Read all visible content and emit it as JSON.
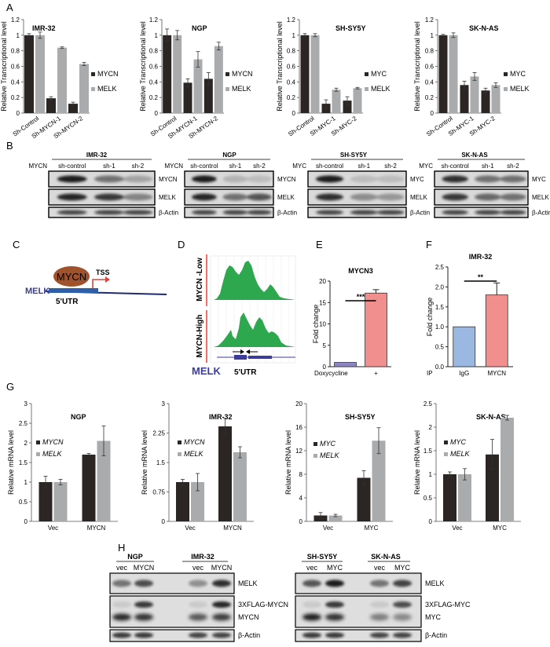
{
  "figure": {
    "panel_labels": {
      "A": "A",
      "B": "B",
      "C": "C",
      "D": "D",
      "E": "E",
      "F": "F",
      "G": "G",
      "H": "H"
    },
    "colors": {
      "dark": "#2b2523",
      "light": "#a9abad",
      "green": "#2ea84f",
      "blue": "#9bb8e3",
      "pink": "#f18e8e",
      "purple": "#8c86c4",
      "red_line": "#e0433b",
      "melk_blue": "#3d3c99",
      "brown": "#a0522d"
    },
    "C": {
      "tf": "MYCN",
      "tss": "TSS",
      "gene": "MELK",
      "utr": "5'UTR"
    },
    "D": {
      "low": "MYCN -Low",
      "high": "MYCN-High",
      "gene": "MELK",
      "utr": "5'UTR"
    },
    "B": {
      "blots": [
        {
          "cell": "IMR-32",
          "target": "MYCN",
          "lanes": [
            "sh-control",
            "sh-1",
            "sh-2"
          ],
          "rows": [
            "MYCN",
            "MELK",
            "β-Actin"
          ]
        },
        {
          "cell": "NGP",
          "target": "MYCN",
          "lanes": [
            "sh-control",
            "sh-1",
            "sh-2"
          ],
          "rows": [
            "MYCN",
            "MELK",
            "β-Actin"
          ]
        },
        {
          "cell": "SH-SY5Y",
          "target": "MYC",
          "lanes": [
            "sh-control",
            "sh-1",
            "sh-2"
          ],
          "rows": [
            "MYC",
            "MELK",
            "β-Actin"
          ]
        },
        {
          "cell": "SK-N-AS",
          "target": "MYC",
          "lanes": [
            "sh-control",
            "sh-1",
            "sh-2"
          ],
          "rows": [
            "MYC",
            "MELK",
            "β-Actin"
          ]
        }
      ]
    },
    "H": {
      "blots": [
        {
          "cells": [
            "NGP",
            "IMR-32"
          ],
          "lanes": [
            "vec",
            "MYCN",
            "vec",
            "MYCN"
          ],
          "rows": [
            "MELK",
            "3XFLAG-MYCN",
            "MYCN",
            "β-Actin"
          ]
        },
        {
          "cells": [
            "SH-SY5Y",
            "SK-N-AS"
          ],
          "lanes": [
            "vec",
            "MYC",
            "vec",
            "MYC"
          ],
          "rows": [
            "MELK",
            "3XFLAG-MYC",
            "MYC",
            "β-Actin"
          ]
        }
      ]
    }
  },
  "chart_data": [
    {
      "panel": "A",
      "type": "bar",
      "title": "IMR-32",
      "ylabel": "Relative Transcriptional level",
      "categories": [
        "Sh-Control",
        "Sh-MYCN-1",
        "Sh-MYCN-2"
      ],
      "series": [
        {
          "name": "MYCN",
          "values": [
            1.0,
            0.19,
            0.12
          ],
          "errors": [
            0.02,
            0.02,
            0.02
          ]
        },
        {
          "name": "MELK",
          "values": [
            1.0,
            0.84,
            0.63
          ],
          "errors": [
            0.04,
            0.01,
            0.02
          ]
        }
      ],
      "ylim": [
        0,
        1.2
      ],
      "yticks": [
        "0",
        "0.2",
        "0.4",
        "0.6",
        "0.8",
        "1",
        "1.2"
      ]
    },
    {
      "panel": "A",
      "type": "bar",
      "title": "NGP",
      "ylabel": "Relative Transcriptional level",
      "categories": [
        "Sh-Control",
        "Sh-MYCN-1",
        "Sh-MYCN-2"
      ],
      "series": [
        {
          "name": "MYCN",
          "values": [
            1.0,
            0.39,
            0.44
          ],
          "errors": [
            0.08,
            0.05,
            0.08
          ]
        },
        {
          "name": "MELK",
          "values": [
            1.0,
            0.69,
            0.86
          ],
          "errors": [
            0.06,
            0.1,
            0.05
          ]
        }
      ],
      "ylim": [
        0,
        1.2
      ],
      "yticks": [
        "0",
        "0.2",
        "0.4",
        "0.6",
        "0.8",
        "1",
        "1.2"
      ]
    },
    {
      "panel": "A",
      "type": "bar",
      "title": "SH-SY5Y",
      "ylabel": "Relative Transcriptional level",
      "categories": [
        "Sh-Control",
        "Sh-MYC-1",
        "Sh-MYC-2"
      ],
      "series": [
        {
          "name": "MYC",
          "values": [
            1.0,
            0.12,
            0.16
          ],
          "errors": [
            0.02,
            0.05,
            0.05
          ]
        },
        {
          "name": "MELK",
          "values": [
            1.0,
            0.3,
            0.32
          ],
          "errors": [
            0.02,
            0.02,
            0.01
          ]
        }
      ],
      "ylim": [
        0,
        1.2
      ],
      "yticks": [
        "0",
        "0.2",
        "0.4",
        "0.6",
        "0.8",
        "1",
        "1.2"
      ]
    },
    {
      "panel": "A",
      "type": "bar",
      "title": "SK-N-AS",
      "ylabel": "Relative Transcriptional level",
      "categories": [
        "Sh-Control",
        "Sh-MYC-1",
        "Sh-MYC-2"
      ],
      "series": [
        {
          "name": "MYC",
          "values": [
            1.0,
            0.36,
            0.29
          ],
          "errors": [
            0.01,
            0.05,
            0.03
          ]
        },
        {
          "name": "MELK",
          "values": [
            1.0,
            0.47,
            0.36
          ],
          "errors": [
            0.03,
            0.05,
            0.03
          ]
        }
      ],
      "ylim": [
        0,
        1.2
      ],
      "yticks": [
        "0",
        "0.2",
        "0.4",
        "0.6",
        "0.8",
        "1",
        "1.2"
      ]
    },
    {
      "panel": "E",
      "type": "bar",
      "title": "MYCN3",
      "ylabel": "Fold change",
      "xlabel": "Doxycycline",
      "categories": [
        "-",
        "+"
      ],
      "values": [
        1.0,
        17.2
      ],
      "errors": [
        0,
        0.8
      ],
      "bar_colors": [
        "#8c86c4",
        "#f18e8e"
      ],
      "significance": "***",
      "ylim": [
        0,
        20
      ],
      "yticks": [
        "0",
        "5",
        "10",
        "15",
        "20"
      ]
    },
    {
      "panel": "F",
      "type": "bar",
      "title": "IMR-32",
      "ylabel": "Fold change",
      "xlabel": "IP",
      "categories": [
        "IgG",
        "MYCN"
      ],
      "values": [
        1.0,
        1.8
      ],
      "errors": [
        0,
        0.3
      ],
      "bar_colors": [
        "#9bb8e3",
        "#f18e8e"
      ],
      "significance": "**",
      "ylim": [
        0,
        2.5
      ],
      "yticks": [
        "0.0",
        "0.5",
        "1.0",
        "1.5",
        "2.0",
        "2.5"
      ]
    },
    {
      "panel": "G",
      "type": "bar",
      "title": "NGP",
      "ylabel": "Relative mRNA level",
      "categories": [
        "Vec",
        "MYCN"
      ],
      "series": [
        {
          "name": "MYCN",
          "values": [
            1.0,
            1.7
          ],
          "errors": [
            0.15,
            0.03
          ]
        },
        {
          "name": "MELK",
          "values": [
            1.0,
            2.05
          ],
          "errors": [
            0.07,
            0.38
          ]
        }
      ],
      "ylim": [
        0,
        3
      ],
      "yticks": [
        "0",
        "0.5",
        "1",
        "1.5",
        "2",
        "2.5",
        "3"
      ]
    },
    {
      "panel": "G",
      "type": "bar",
      "title": "IMR-32",
      "ylabel": "Relative mRNA level",
      "categories": [
        "Vec",
        "MYCN"
      ],
      "series": [
        {
          "name": "MYCN",
          "values": [
            1.0,
            2.42
          ],
          "errors": [
            0.07,
            0.2
          ]
        },
        {
          "name": "MELK",
          "values": [
            1.0,
            1.76
          ],
          "errors": [
            0.22,
            0.14
          ]
        }
      ],
      "ylim": [
        0,
        3
      ],
      "yticks": [
        "0",
        "0.75",
        "1.5",
        "2.25",
        "3"
      ]
    },
    {
      "panel": "G",
      "type": "bar",
      "title": "SH-SY5Y",
      "ylabel": "Relative mRNA level",
      "categories": [
        "Vec",
        "MYC"
      ],
      "series": [
        {
          "name": "MYC",
          "values": [
            1.0,
            7.4
          ],
          "errors": [
            0.5,
            1.2
          ]
        },
        {
          "name": "MELK",
          "values": [
            1.0,
            13.7
          ],
          "errors": [
            0.2,
            2.2
          ]
        }
      ],
      "ylim": [
        0,
        20
      ],
      "yticks": [
        "0",
        "4",
        "8",
        "12",
        "16",
        "20"
      ]
    },
    {
      "panel": "G",
      "type": "bar",
      "title": "SK-N-AS",
      "ylabel": "Relative mRNA level",
      "categories": [
        "Vec",
        "MYC"
      ],
      "series": [
        {
          "name": "MYC",
          "values": [
            1.0,
            1.42
          ],
          "errors": [
            0.05,
            0.32
          ]
        },
        {
          "name": "MELK",
          "values": [
            1.0,
            2.2
          ],
          "errors": [
            0.12,
            0.05
          ]
        }
      ],
      "ylim": [
        0,
        2.5
      ],
      "yticks": [
        "0",
        "0.5",
        "1",
        "1.5",
        "2",
        "2.5"
      ]
    }
  ]
}
